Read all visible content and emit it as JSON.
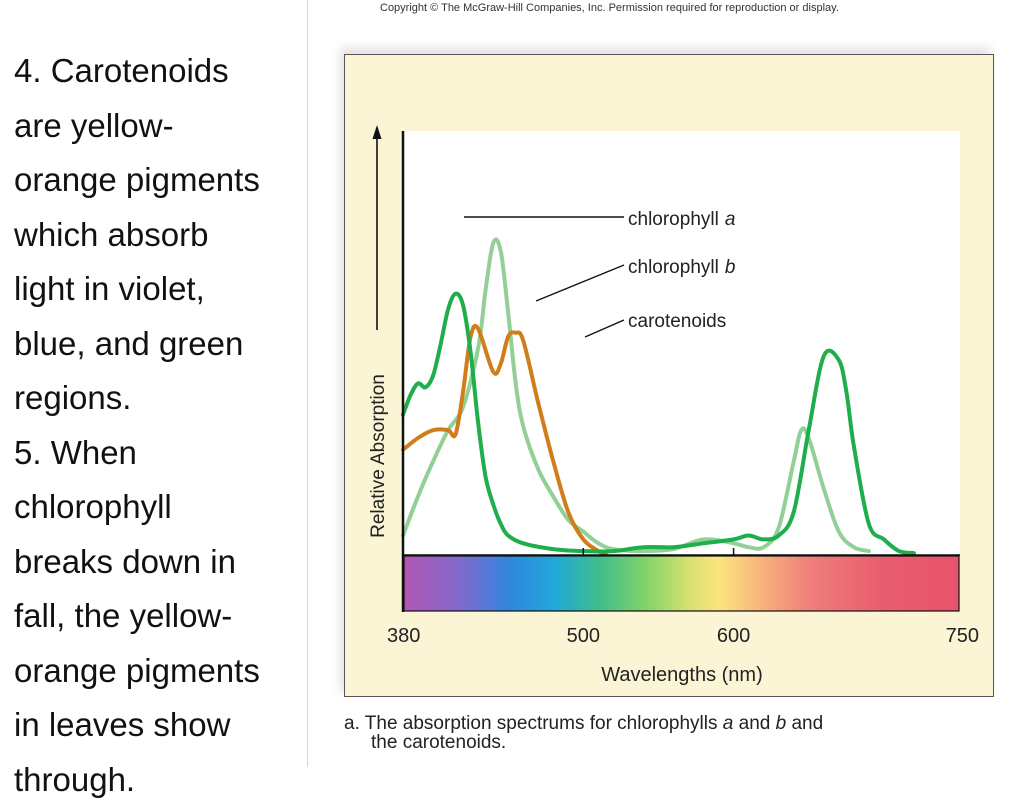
{
  "slide": {
    "text_lines": [
      "4. Carotenoids",
      "are yellow-",
      "orange pigments",
      "which absorb",
      "light in violet,",
      "blue, and green",
      "regions.",
      "5. When",
      "chlorophyll",
      "breaks down in",
      "fall, the yellow-",
      "orange pigments",
      "in leaves show",
      "through."
    ],
    "copyright": "Copyright © The McGraw-Hill Companies, Inc. Permission required for reproduction or display.",
    "caption": {
      "prefix": "a. The absorption spectrums for chlorophylls ",
      "italic_a": "a",
      "middle": " and ",
      "italic_b": "b",
      "suffix": " and",
      "line2": "the carotenoids."
    }
  },
  "chart_data": {
    "type": "line",
    "xlabel": "Wavelengths (nm)",
    "ylabel": "Relative Absorption",
    "xlim": [
      380,
      750
    ],
    "ylim": [
      0,
      100
    ],
    "x_ticks": [
      380,
      500,
      600,
      750
    ],
    "grid": false,
    "series": [
      {
        "name": "chlorophyll",
        "name_italic": "a",
        "color": "#1fae4b",
        "x": [
          380,
          385,
          390,
          395,
          400,
          405,
          410,
          415,
          420,
          425,
          430,
          435,
          440,
          445,
          450,
          460,
          480,
          500,
          520,
          540,
          560,
          580,
          600,
          610,
          620,
          630,
          640,
          650,
          660,
          670,
          675,
          680,
          690,
          700,
          710,
          720
        ],
        "y": [
          36,
          41,
          44,
          43,
          46,
          54,
          63,
          67,
          64,
          52,
          34,
          20,
          13,
          8,
          5,
          3,
          1.5,
          1,
          1,
          2,
          2,
          3,
          4,
          5,
          4,
          5,
          11,
          32,
          51,
          50,
          42,
          28,
          8,
          4,
          1,
          0.5
        ]
      },
      {
        "name": "chlorophyll",
        "name_italic": "b",
        "color": "#92d096",
        "x": [
          380,
          390,
          400,
          410,
          420,
          430,
          435,
          440,
          445,
          450,
          455,
          460,
          470,
          480,
          490,
          500,
          510,
          520,
          540,
          560,
          580,
          600,
          610,
          620,
          630,
          640,
          645,
          650,
          660,
          670,
          680,
          690
        ],
        "y": [
          5,
          15,
          24,
          32,
          38,
          53,
          68,
          80,
          78,
          62,
          44,
          33,
          22,
          15,
          9,
          6,
          3,
          1.5,
          1,
          1.5,
          4,
          3,
          2,
          2,
          7,
          24,
          32,
          30,
          17,
          6,
          2,
          1
        ]
      },
      {
        "name": "carotenoids",
        "color": "#d07d1a",
        "x": [
          380,
          390,
          400,
          410,
          415,
          420,
          425,
          430,
          440,
          445,
          450,
          455,
          460,
          470,
          480,
          490,
          500,
          510,
          515
        ],
        "y": [
          27,
          30,
          32,
          32,
          31,
          42,
          56,
          58,
          47,
          49,
          56,
          57,
          55,
          39,
          24,
          11,
          4,
          1,
          0
        ]
      }
    ],
    "spectrum_bar": {
      "stops": [
        {
          "nm": 380,
          "color": "#b456b5"
        },
        {
          "nm": 420,
          "color": "#7b6ccf"
        },
        {
          "nm": 450,
          "color": "#2f86dd"
        },
        {
          "nm": 480,
          "color": "#21a8d9"
        },
        {
          "nm": 510,
          "color": "#3fbd8c"
        },
        {
          "nm": 540,
          "color": "#7ed36a"
        },
        {
          "nm": 570,
          "color": "#d8e070"
        },
        {
          "nm": 590,
          "color": "#fbe57e"
        },
        {
          "nm": 620,
          "color": "#f7b07a"
        },
        {
          "nm": 650,
          "color": "#ef7f7a"
        },
        {
          "nm": 700,
          "color": "#e95c6e"
        },
        {
          "nm": 750,
          "color": "#e8536c"
        }
      ]
    }
  }
}
